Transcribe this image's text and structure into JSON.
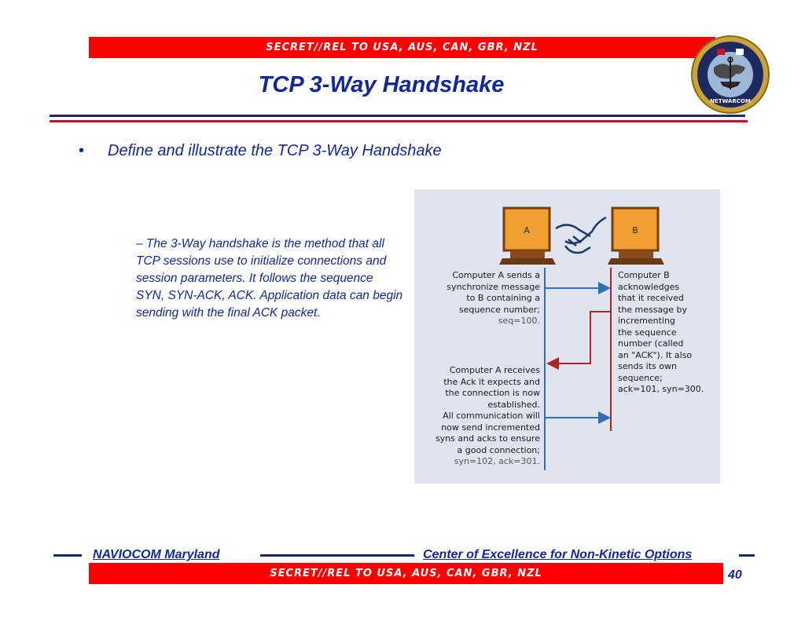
{
  "banner": {
    "top": "SECRET//REL TO USA, AUS, CAN, GBR, NZL",
    "bottom": "SECRET//REL TO USA, AUS, CAN, GBR, NZL"
  },
  "slide": {
    "title": "TCP 3-Way Handshake",
    "bullet_marker": "•",
    "bullet": "Define and illustrate the TCP 3-Way Handshake",
    "subpoint": "– The 3-Way handshake is the method that all TCP sessions use to initialize connections and session parameters.  It follows the sequence SYN, SYN-ACK, ACK. Application data can begin sending with the final ACK packet."
  },
  "figure": {
    "computer_a_label": "A",
    "computer_b_label": "B",
    "step1_lines": [
      "Computer A sends a",
      "synchronize message",
      "to B containing a",
      "sequence number;"
    ],
    "step1_value": "seq=100.",
    "step2_lines": [
      "Computer B",
      "acknowledges",
      "that it received",
      "the message by",
      "incrementing",
      "the sequence",
      "number (called",
      "an \"ACK\"). It also",
      "sends its own",
      "sequence;",
      "ack=101, syn=300."
    ],
    "step3_lines": [
      "Computer A receives",
      "the Ack it expects and",
      "the connection is now",
      "established.",
      "All communication will",
      "now send incremented",
      "syns and acks to ensure",
      "a good connection;"
    ],
    "step3_value": "syn=102, ack=301."
  },
  "emblem": {
    "ring_text": "NAVY CYBER OPERATIONS COMMAND MARYLAND",
    "bottom_text": "NETWARCOM"
  },
  "footer": {
    "left": "NAVIOCOM Maryland",
    "right": "Center of Excellence for Non-Kinetic Options",
    "page_number": "40"
  },
  "colors": {
    "banner_red": "#ff0000",
    "title_blue": "#10289c",
    "rule_navy": "#1a2a6c",
    "rule_red": "#c8102e",
    "figure_bg": "#dfe4ee",
    "arrow_blue": "#2e6fb5",
    "arrow_red": "#b22222",
    "monitor_orange": "#f0a030"
  }
}
